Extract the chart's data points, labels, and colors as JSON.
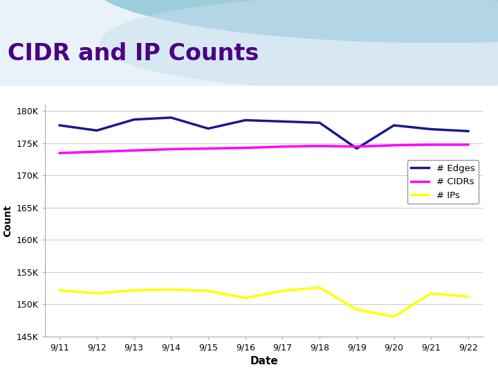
{
  "title": "CIDR and IP Counts",
  "dates": [
    "9/11",
    "9/12",
    "9/13",
    "9/14",
    "9/15",
    "9/16",
    "9/17",
    "9/18",
    "9/19",
    "9/20",
    "9/21",
    "9/22"
  ],
  "edges_data": [
    177800,
    177000,
    178700,
    179000,
    177300,
    178600,
    178400,
    178200,
    174200,
    177800,
    177200,
    176900
  ],
  "cidrs_data": [
    173500,
    173700,
    173900,
    174100,
    174200,
    174300,
    174500,
    174600,
    174500,
    174700,
    174800,
    174800
  ],
  "ips_data": [
    152200,
    151700,
    152200,
    152300,
    152100,
    151000,
    152100,
    152600,
    149200,
    148100,
    151700,
    151200
  ],
  "edges_color": "#1a1a8c",
  "cidrs_color": "#ff00ff",
  "ips_color": "#ffff00",
  "ylabel": "Count",
  "xlabel": "Date",
  "ylim": [
    145000,
    181000
  ],
  "yticks": [
    145000,
    150000,
    155000,
    160000,
    165000,
    170000,
    175000,
    180000
  ],
  "ytick_labels": [
    "145K",
    "150K",
    "155K",
    "160K",
    "165K",
    "170K",
    "175K",
    "180K"
  ],
  "bg_color": "#ffffff",
  "chart_bg": "#ffffff",
  "grid_color": "#cccccc",
  "title_color": "#4b0082",
  "title_fontsize": 24,
  "header_top_color": "#e8f0f8",
  "header_bar_color": "#7fbfdf",
  "line_width": 2.5
}
